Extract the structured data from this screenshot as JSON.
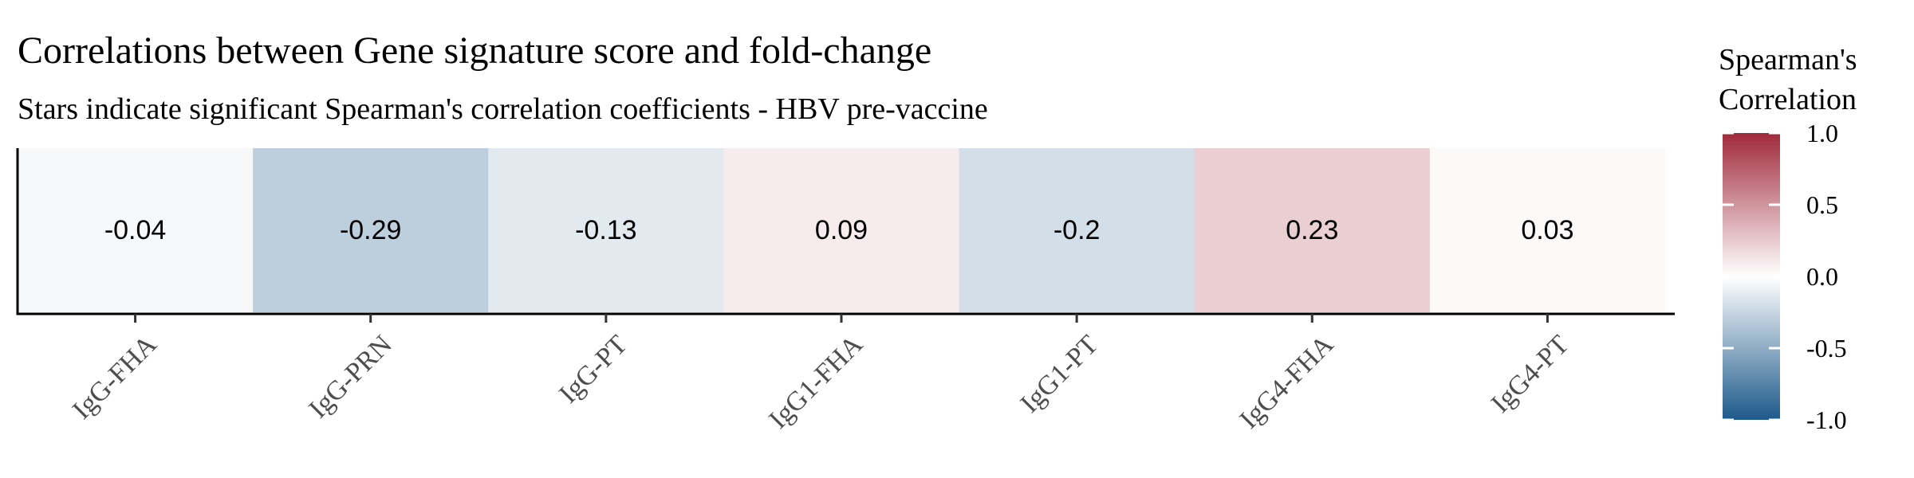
{
  "chart_data": {
    "type": "heatmap",
    "title": "Correlations between Gene signature score and fold-change",
    "subtitle": "Stars indicate significant Spearman's correlation coefficients - HBV pre-vaccine",
    "categories": [
      "IgG-FHA",
      "IgG-PRN",
      "IgG-PT",
      "IgG1-FHA",
      "IgG1-PT",
      "IgG4-FHA",
      "IgG4-PT"
    ],
    "values": [
      -0.04,
      -0.29,
      -0.13,
      0.09,
      -0.2,
      0.23,
      0.03
    ],
    "value_labels": [
      "-0.04",
      "-0.29",
      "-0.13",
      "0.09",
      "-0.2",
      "0.23",
      "0.03"
    ],
    "xlabel": "",
    "ylabel": "",
    "legend": {
      "title_lines": [
        "Spearman's",
        "Correlation"
      ],
      "ticks": [
        1.0,
        0.5,
        0.0,
        -0.5,
        -1.0
      ],
      "tick_labels": [
        "1.0",
        "0.5",
        "0.0",
        "-0.5",
        "-1.0"
      ],
      "range": [
        -1.0,
        1.0
      ],
      "placement": "right"
    },
    "colors": {
      "low": "#1d5a8a",
      "mid": "#ffffff",
      "high": "#a02a3b"
    },
    "grid": false
  }
}
